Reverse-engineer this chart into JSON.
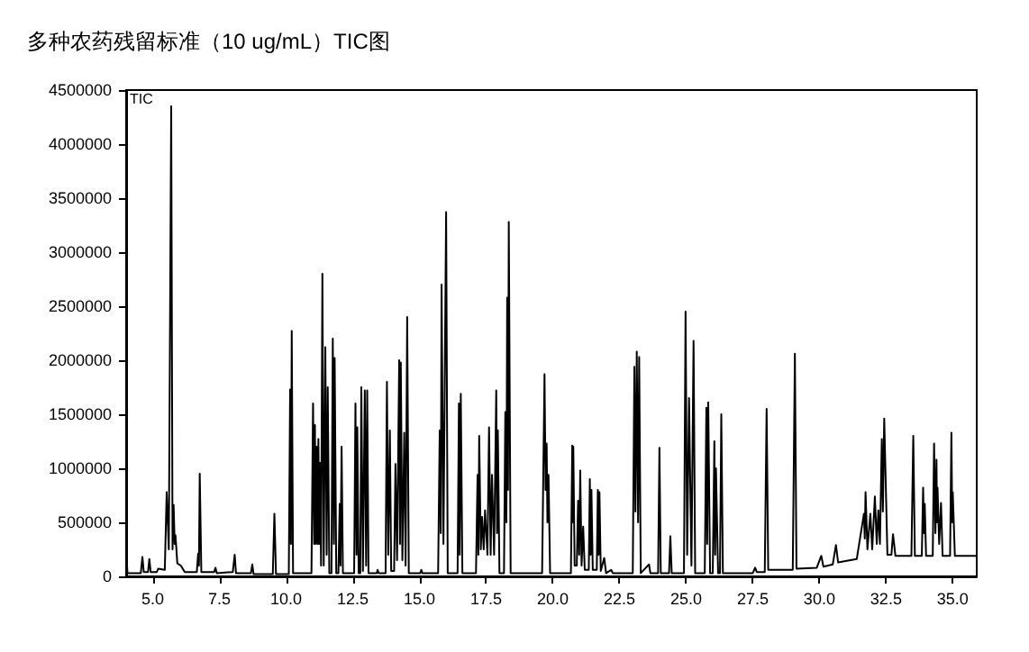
{
  "chart_data": {
    "type": "line",
    "title": "多种农药残留标准（10 ug/mL）TIC图",
    "annotations": [
      "TIC"
    ],
    "x": [
      4.0,
      4.05,
      4.55,
      4.61,
      4.66,
      4.82,
      4.87,
      4.92,
      5.15,
      5.2,
      5.45,
      5.52,
      5.6,
      5.69,
      5.74,
      5.78,
      5.82,
      5.85,
      5.92,
      6.05,
      6.2,
      6.65,
      6.7,
      6.73,
      6.76,
      6.82,
      7.3,
      7.35,
      7.4,
      8.0,
      8.07,
      8.12,
      8.68,
      8.73,
      8.78,
      9.5,
      9.56,
      9.62,
      10.1,
      10.15,
      10.18,
      10.21,
      10.26,
      10.95,
      11.01,
      11.05,
      11.08,
      11.11,
      11.14,
      11.18,
      11.21,
      11.24,
      11.27,
      11.31,
      11.36,
      11.41,
      11.47,
      11.52,
      11.56,
      11.62,
      11.7,
      11.75,
      11.79,
      11.82,
      11.88,
      11.96,
      12.01,
      12.04,
      12.08,
      12.13,
      12.55,
      12.6,
      12.64,
      12.67,
      12.72,
      12.78,
      12.82,
      12.88,
      12.95,
      13.0,
      13.04,
      13.09,
      13.4,
      13.43,
      13.47,
      13.73,
      13.78,
      13.83,
      13.89,
      13.94,
      14.05,
      14.1,
      14.16,
      14.24,
      14.27,
      14.3,
      14.36,
      14.43,
      14.48,
      14.54,
      14.6,
      15.03,
      15.07,
      15.11,
      15.7,
      15.76,
      15.8,
      15.83,
      15.9,
      16.0,
      16.06,
      16.43,
      16.48,
      16.51,
      16.55,
      16.61,
      17.12,
      17.18,
      17.21,
      17.24,
      17.3,
      17.35,
      17.41,
      17.46,
      17.55,
      17.61,
      17.67,
      17.72,
      17.8,
      17.88,
      17.91,
      17.94,
      18.0,
      18.17,
      18.22,
      18.26,
      18.29,
      18.32,
      18.35,
      18.42,
      19.6,
      19.69,
      19.73,
      19.77,
      19.8,
      19.84,
      19.9,
      20.68,
      20.73,
      20.75,
      20.77,
      20.82,
      20.9,
      20.95,
      20.99,
      21.03,
      21.08,
      21.14,
      21.2,
      21.35,
      21.39,
      21.42,
      21.45,
      21.5,
      21.65,
      21.69,
      21.72,
      21.75,
      21.8,
      21.93,
      22.0,
      22.19,
      22.25,
      23.0,
      23.06,
      23.1,
      23.15,
      23.2,
      23.24,
      23.3,
      23.61,
      23.66,
      23.95,
      24.0,
      24.05,
      24.36,
      24.41,
      24.46,
      24.92,
      24.98,
      25.04,
      25.11,
      25.2,
      25.28,
      25.34,
      25.7,
      25.76,
      25.79,
      25.83,
      25.9,
      26.0,
      26.06,
      26.09,
      26.12,
      26.2,
      26.27,
      26.32,
      26.38,
      27.5,
      27.59,
      27.65,
      27.95,
      28.02,
      28.08,
      29.0,
      29.08,
      29.14,
      29.9,
      30.07,
      30.15,
      30.5,
      30.62,
      30.7,
      31.4,
      31.67,
      31.7,
      31.73,
      31.8,
      31.91,
      31.98,
      32.08,
      32.15,
      32.21,
      32.27,
      32.34,
      32.38,
      32.43,
      32.55,
      32.7,
      32.76,
      32.85,
      33.45,
      33.52,
      33.58,
      33.84,
      33.89,
      33.92,
      33.95,
      34.0,
      34.25,
      34.3,
      34.35,
      34.39,
      34.41,
      34.43,
      34.49,
      34.56,
      34.62,
      34.9,
      34.95,
      34.98,
      35.0,
      35.08,
      35.9
    ],
    "series": [
      {
        "color": "#000000",
        "values": [
          230000,
          30000,
          30000,
          180000,
          40000,
          40000,
          160000,
          40000,
          40000,
          70000,
          60000,
          780000,
          250000,
          4350000,
          250000,
          660000,
          300000,
          380000,
          120000,
          100000,
          40000,
          40000,
          210000,
          100000,
          950000,
          40000,
          40000,
          80000,
          30000,
          40000,
          200000,
          30000,
          30000,
          110000,
          20000,
          20000,
          580000,
          20000,
          20000,
          1730000,
          300000,
          2270000,
          30000,
          30000,
          1600000,
          300000,
          1400000,
          300000,
          1200000,
          300000,
          1270000,
          300000,
          1050000,
          100000,
          2800000,
          100000,
          2120000,
          200000,
          1750000,
          30000,
          30000,
          2200000,
          300000,
          2020000,
          30000,
          30000,
          670000,
          100000,
          1200000,
          30000,
          30000,
          1600000,
          200000,
          1380000,
          30000,
          30000,
          1750000,
          50000,
          1720000,
          100000,
          1720000,
          30000,
          30000,
          60000,
          30000,
          30000,
          1800000,
          200000,
          1350000,
          50000,
          50000,
          1040000,
          150000,
          2000000,
          300000,
          1980000,
          150000,
          1330000,
          100000,
          2400000,
          30000,
          30000,
          60000,
          30000,
          30000,
          1350000,
          400000,
          2700000,
          300000,
          3370000,
          30000,
          30000,
          1600000,
          200000,
          1690000,
          30000,
          30000,
          940000,
          200000,
          1300000,
          250000,
          550000,
          250000,
          610000,
          200000,
          1380000,
          200000,
          940000,
          200000,
          1720000,
          400000,
          1350000,
          30000,
          30000,
          1520000,
          500000,
          2580000,
          800000,
          3280000,
          30000,
          30000,
          1870000,
          800000,
          1230000,
          500000,
          940000,
          30000,
          30000,
          1210000,
          500000,
          1200000,
          100000,
          100000,
          700000,
          200000,
          980000,
          100000,
          460000,
          60000,
          60000,
          900000,
          200000,
          800000,
          60000,
          60000,
          800000,
          200000,
          780000,
          50000,
          170000,
          30000,
          60000,
          30000,
          30000,
          1940000,
          600000,
          2080000,
          500000,
          2030000,
          30000,
          110000,
          30000,
          30000,
          1190000,
          30000,
          30000,
          370000,
          30000,
          30000,
          2450000,
          200000,
          1650000,
          100000,
          2180000,
          30000,
          30000,
          1560000,
          300000,
          1610000,
          30000,
          30000,
          1250000,
          200000,
          1000000,
          30000,
          30000,
          1500000,
          30000,
          30000,
          80000,
          40000,
          40000,
          1550000,
          60000,
          60000,
          2060000,
          70000,
          80000,
          190000,
          90000,
          110000,
          290000,
          130000,
          160000,
          580000,
          350000,
          780000,
          250000,
          580000,
          250000,
          740000,
          300000,
          610000,
          300000,
          1270000,
          600000,
          1460000,
          200000,
          200000,
          390000,
          190000,
          190000,
          1300000,
          190000,
          190000,
          820000,
          400000,
          670000,
          190000,
          190000,
          1230000,
          400000,
          1080000,
          500000,
          820000,
          300000,
          680000,
          190000,
          190000,
          1330000,
          500000,
          780000,
          190000,
          190000
        ]
      }
    ],
    "xlim": [
      4.0,
      35.9
    ],
    "xticks": [
      {
        "value": 5,
        "label": "5.0"
      },
      {
        "value": 7.5,
        "label": "7.5"
      },
      {
        "value": 10,
        "label": "10.0"
      },
      {
        "value": 12.5,
        "label": "12.5"
      },
      {
        "value": 15,
        "label": "15.0"
      },
      {
        "value": 17.5,
        "label": "17.5"
      },
      {
        "value": 20,
        "label": "20.0"
      },
      {
        "value": 22.5,
        "label": "22.5"
      },
      {
        "value": 25,
        "label": "25.0"
      },
      {
        "value": 27.5,
        "label": "27.5"
      },
      {
        "value": 30,
        "label": "30.0"
      },
      {
        "value": 32.5,
        "label": "32.5"
      },
      {
        "value": 35,
        "label": "35.0"
      }
    ],
    "ylim": [
      0,
      4500000
    ],
    "yticks": [
      0,
      500000,
      1000000,
      1500000,
      2000000,
      2500000,
      3000000,
      3500000,
      4000000,
      4500000
    ]
  }
}
